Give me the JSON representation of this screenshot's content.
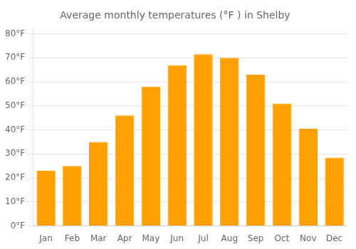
{
  "chart_data": {
    "type": "bar",
    "title": "Average monthly temperatures (°F ) in Shelby",
    "categories": [
      "Jan",
      "Feb",
      "Mar",
      "Apr",
      "May",
      "Jun",
      "Jul",
      "Aug",
      "Sep",
      "Oct",
      "Nov",
      "Dec"
    ],
    "values": [
      23,
      25,
      35,
      46,
      58,
      67,
      71.5,
      70,
      63,
      51,
      40.5,
      28.5
    ],
    "color": "#FFA000",
    "ylim": [
      0,
      82
    ],
    "yticks": [
      {
        "value": 0,
        "label": "0°F"
      },
      {
        "value": 10,
        "label": "10°F"
      },
      {
        "value": 20,
        "label": "20°F"
      },
      {
        "value": 30,
        "label": "30°F"
      },
      {
        "value": 40,
        "label": "40°F"
      },
      {
        "value": 50,
        "label": "50°F"
      },
      {
        "value": 60,
        "label": "60°F"
      },
      {
        "value": 70,
        "label": "70°F"
      },
      {
        "value": 80,
        "label": "80°F"
      }
    ],
    "grid": true
  }
}
